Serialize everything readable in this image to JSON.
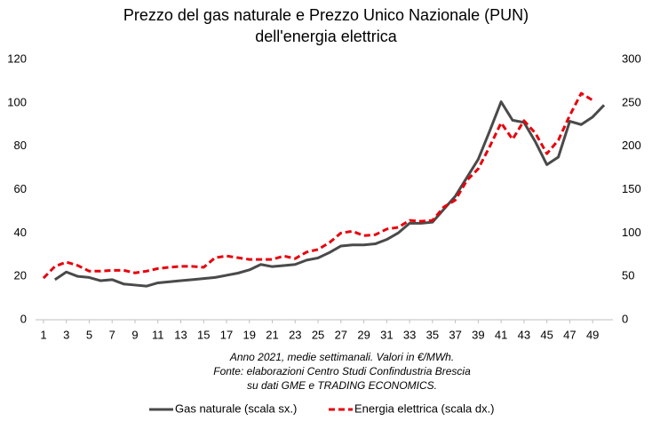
{
  "chart_data": {
    "type": "line",
    "title": [
      "Prezzo del gas naturale e Prezzo Unico Nazionale (PUN)",
      "dell'energia elettrica"
    ],
    "notes": [
      "Anno 2021, medie settimanali.  Valori in €/MWh.",
      "Fonte: elaborazioni Centro Studi Confindustria Brescia",
      "su dati GME e TRADING ECONOMICS."
    ],
    "x": [
      1,
      2,
      3,
      4,
      5,
      6,
      7,
      8,
      9,
      10,
      11,
      12,
      13,
      14,
      15,
      16,
      17,
      18,
      19,
      20,
      21,
      22,
      23,
      24,
      25,
      26,
      27,
      28,
      29,
      30,
      31,
      32,
      33,
      34,
      35,
      36,
      37,
      38,
      39,
      40,
      41,
      42,
      43,
      44,
      45,
      46,
      47,
      48,
      49,
      50
    ],
    "xlim": [
      0.5,
      50.5
    ],
    "xticks": [
      1,
      3,
      5,
      7,
      9,
      11,
      13,
      15,
      17,
      19,
      21,
      23,
      25,
      27,
      29,
      31,
      33,
      35,
      37,
      39,
      41,
      43,
      45,
      47,
      49
    ],
    "ylim": [
      0,
      120
    ],
    "yticks": [
      0,
      20,
      40,
      60,
      80,
      100,
      120
    ],
    "y2lim": [
      0,
      300
    ],
    "y2ticks": [
      0,
      50,
      100,
      150,
      200,
      250,
      300
    ],
    "series": [
      {
        "name": "Gas naturale (scala sx.)",
        "color": "#4a4a4a",
        "dash": false,
        "values": [
          null,
          18.5,
          22,
          20,
          19.5,
          18,
          18.5,
          16.5,
          16,
          15.5,
          17,
          17.5,
          18,
          18.5,
          19,
          19.5,
          20.5,
          21.5,
          23,
          25.5,
          24.5,
          25,
          25.5,
          27.5,
          28.5,
          31,
          34,
          34.5,
          34.5,
          35,
          37,
          40,
          44.5,
          44.5,
          45,
          51,
          57,
          65.5,
          74,
          87,
          100.5,
          92,
          91,
          82,
          71.5,
          75,
          91.5,
          90,
          93.5,
          99
        ]
      },
      {
        "name": "Energia elettrica (scala dx.)",
        "color": "#e8000b",
        "dash": true,
        "axis": "y2",
        "values": [
          48,
          61.5,
          66.5,
          62.5,
          56,
          56,
          57,
          57,
          54,
          56,
          59,
          60.5,
          61.5,
          61.5,
          60.5,
          71.5,
          73.5,
          71.5,
          69.5,
          69.5,
          69.5,
          73.5,
          70.5,
          78,
          81,
          89,
          100,
          102,
          97,
          98,
          104.5,
          106.5,
          114.5,
          113.5,
          114.5,
          130,
          138,
          160.5,
          174,
          199.5,
          227,
          208,
          229.5,
          215,
          191.5,
          207,
          235.5,
          261,
          253,
          null
        ]
      }
    ]
  }
}
